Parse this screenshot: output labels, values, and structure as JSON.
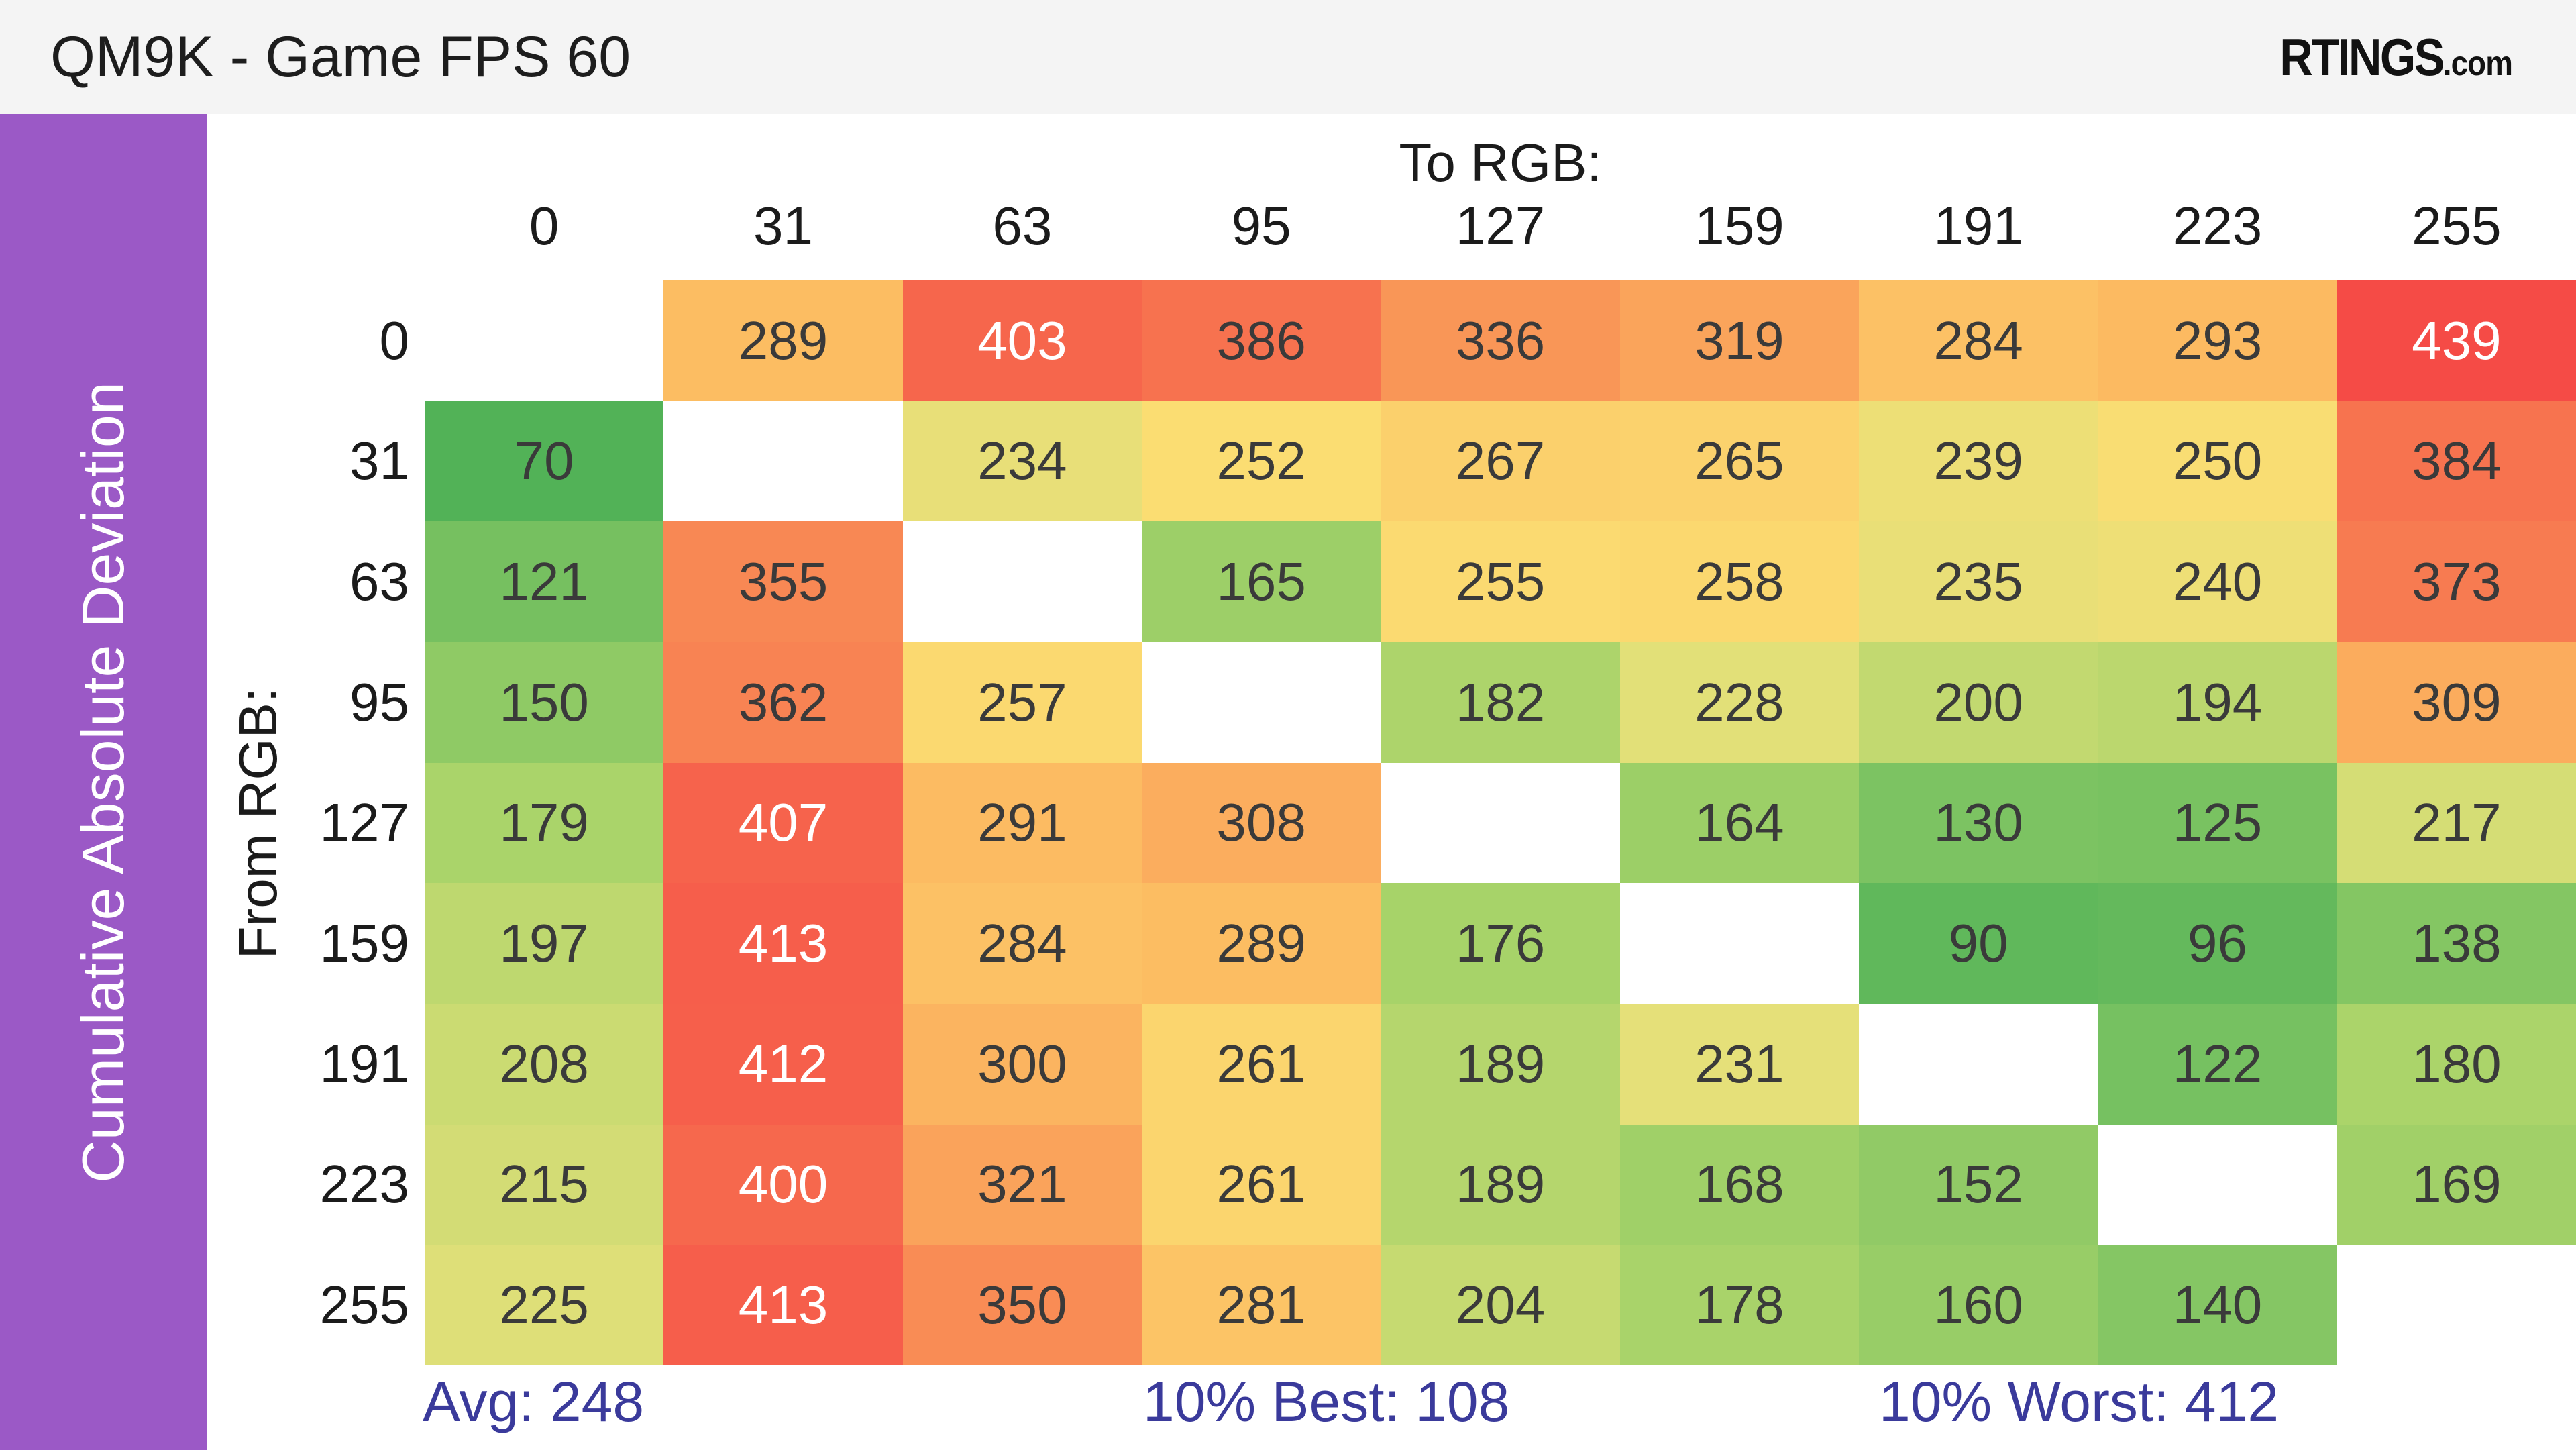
{
  "topbar": {
    "title": "QM9K - Game FPS 60",
    "logo": {
      "main": "RTINGS",
      "suffix": ".com"
    }
  },
  "sidebar": {
    "label": "Cumulative Absolute Deviation"
  },
  "axis": {
    "to_label": "To RGB:",
    "from_label": "From RGB:"
  },
  "stats": {
    "avg": "Avg: 248",
    "best": "10% Best: 108",
    "worst": "10% Worst: 412"
  },
  "colors": {
    "topbar_bg": "#f4f4f4",
    "sidebar_bg": "#9b59c6",
    "stats_text": "#3a3a9b",
    "cell_text": "#3a3a3a",
    "cell_text_light": "#ffffff",
    "label_text": "#1b1b1b"
  },
  "chart_data": {
    "type": "heatmap",
    "title": "QM9K - Game FPS 60",
    "x_axis_title": "To RGB:",
    "y_axis_title": "From RGB:",
    "y_axis_outer_title": "Cumulative Absolute Deviation",
    "x_categories": [
      "0",
      "31",
      "63",
      "95",
      "127",
      "159",
      "191",
      "223",
      "255"
    ],
    "y_categories": [
      "0",
      "31",
      "63",
      "95",
      "127",
      "159",
      "191",
      "223",
      "255"
    ],
    "rows": [
      [
        null,
        289,
        403,
        386,
        336,
        319,
        284,
        293,
        439
      ],
      [
        70,
        null,
        234,
        252,
        267,
        265,
        239,
        250,
        384
      ],
      [
        121,
        355,
        null,
        165,
        255,
        258,
        235,
        240,
        373
      ],
      [
        150,
        362,
        257,
        null,
        182,
        228,
        200,
        194,
        309
      ],
      [
        179,
        407,
        291,
        308,
        null,
        164,
        130,
        125,
        217
      ],
      [
        197,
        413,
        284,
        289,
        176,
        null,
        90,
        96,
        138
      ],
      [
        208,
        412,
        300,
        261,
        189,
        231,
        null,
        122,
        180
      ],
      [
        215,
        400,
        321,
        261,
        189,
        168,
        152,
        null,
        169
      ],
      [
        225,
        413,
        350,
        281,
        204,
        178,
        160,
        140,
        null
      ]
    ],
    "stats": {
      "avg": 248,
      "best_10_percent": 108,
      "worst_10_percent": 412
    },
    "colormap_stops": [
      {
        "value": 70,
        "color": "#52b257"
      },
      {
        "value": 130,
        "color": "#7cc362"
      },
      {
        "value": 180,
        "color": "#abd46a"
      },
      {
        "value": 230,
        "color": "#e4e079"
      },
      {
        "value": 252,
        "color": "#fbdd72"
      },
      {
        "value": 290,
        "color": "#fcbc62"
      },
      {
        "value": 340,
        "color": "#f99356"
      },
      {
        "value": 400,
        "color": "#f6684d"
      },
      {
        "value": 440,
        "color": "#f54a46"
      }
    ],
    "white_text_threshold": 400,
    "legend_position": "none",
    "grid": false
  }
}
